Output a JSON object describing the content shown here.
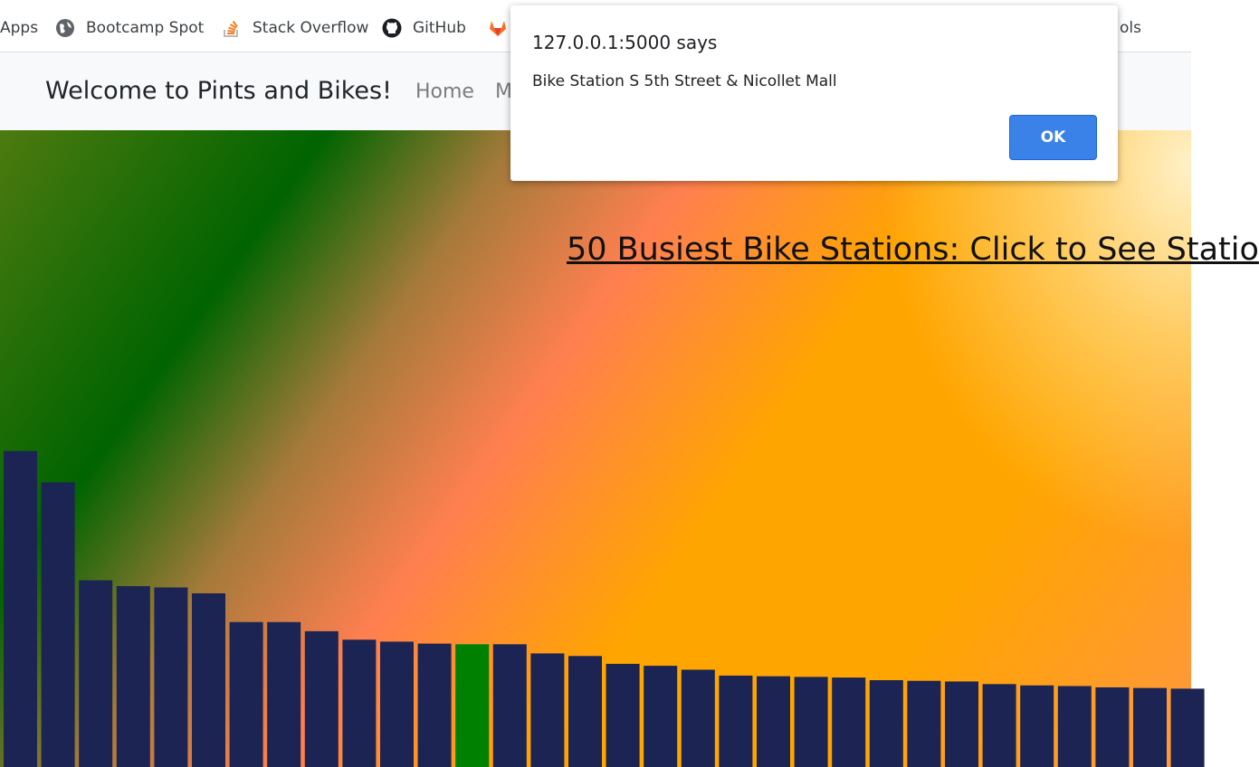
{
  "bookmarks": [
    {
      "label": "Apps",
      "icon": "apps-icon"
    },
    {
      "label": "Bootcamp Spot",
      "icon": "globe-icon"
    },
    {
      "label": "Stack Overflow",
      "icon": "stack-overflow-icon"
    },
    {
      "label": "GitHub",
      "icon": "github-icon"
    },
    {
      "label": "",
      "icon": "gitlab-icon"
    },
    {
      "label": "ols",
      "icon": ""
    }
  ],
  "navbar": {
    "brand": "Welcome to Pints and Bikes!",
    "links": [
      "Home",
      "M"
    ]
  },
  "hero": {
    "title": "50 Busiest Bike Stations: Click to See Statio"
  },
  "dialog": {
    "origin": "127.0.0.1:5000 says",
    "message": "Bike Station S 5th Street & Nicollet Mall",
    "ok_label": "OK"
  },
  "colors": {
    "bar": "#1b2452",
    "bar_selected": "#008000",
    "ok_button": "#3b82e8"
  },
  "chart_data": {
    "type": "bar",
    "values": [
      484,
      436,
      286,
      277,
      275,
      266,
      222,
      222,
      208,
      195,
      192,
      189,
      188,
      188,
      174,
      170,
      158,
      155,
      149,
      140,
      139,
      138,
      137,
      133,
      132,
      131,
      127,
      125,
      124,
      122,
      121,
      120
    ],
    "selected_index": 12,
    "ymax": 500
  }
}
